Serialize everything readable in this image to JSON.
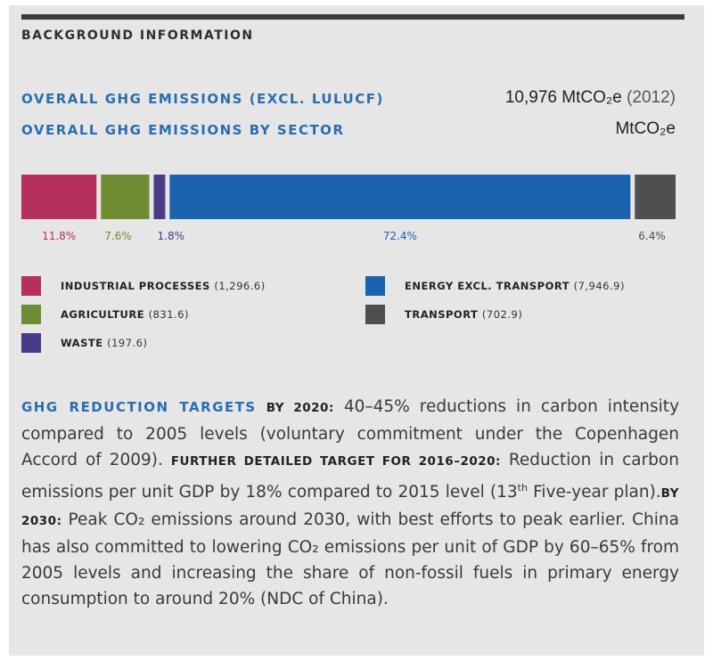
{
  "header": {
    "section_label": "BACKGROUND INFORMATION"
  },
  "overall": {
    "label": "OVERALL GHG EMISSIONS (EXCL. LULUCF)",
    "value": "10,976 MtCO₂e",
    "year": "(2012)"
  },
  "by_sector": {
    "label": "OVERALL GHG EMISSIONS BY SECTOR",
    "unit": "MtCO₂e"
  },
  "chart_data": {
    "type": "bar",
    "orientation": "horizontal-stacked",
    "categories": [
      "Industrial Processes",
      "Agriculture",
      "Waste",
      "Energy excl. Transport",
      "Transport"
    ],
    "values": [
      11.8,
      7.6,
      1.8,
      72.4,
      6.4
    ],
    "value_labels": [
      "11.8%",
      "7.6%",
      "1.8%",
      "72.4%",
      "6.4%"
    ],
    "colors": [
      "#b5305a",
      "#6e8c33",
      "#4b3a86",
      "#1b63ae",
      "#4f4f4f"
    ],
    "label_colors": [
      "#b5305a",
      "#6e8c33",
      "#4b3a86",
      "#1b63ae",
      "#4f4f4f"
    ]
  },
  "legend": [
    {
      "name": "INDUSTRIAL PROCESSES",
      "value": "(1,296.6)",
      "color": "#b5305a"
    },
    {
      "name": "AGRICULTURE",
      "value": "(831.6)",
      "color": "#6e8c33"
    },
    {
      "name": "WASTE",
      "value": "(197.6)",
      "color": "#4b3a86"
    },
    {
      "name": "ENERGY EXCL. TRANSPORT",
      "value": "(7,946.9)",
      "color": "#1b63ae"
    },
    {
      "name": "TRANSPORT",
      "value": "(702.9)",
      "color": "#4f4f4f"
    }
  ],
  "targets": {
    "heading": "GHG REDUCTION TARGETS",
    "by2020_label": "BY 2020:",
    "by2020_text": "40–45% reductions in carbon intensity compared to 2005 levels (voluntary commitment under the Copenhagen Accord of 2009).",
    "further_label": "FURTHER DETAILED TARGET FOR 2016–2020:",
    "further_text_a": "Reduction in carbon emissions per unit GDP by 18% compared to 2015 level (13",
    "further_sup": "th",
    "further_text_b": "Five-year plan).",
    "by2030_label": "BY 2030:",
    "by2030_text": "Peak CO₂ emissions around 2030, with best efforts to peak earlier. China has also committed to lowering CO₂ emissions per unit of GDP by 60–65% from 2005 levels and increasing the share of non-fossil fuels in primary energy consumption to around 20% (NDC of China)."
  }
}
